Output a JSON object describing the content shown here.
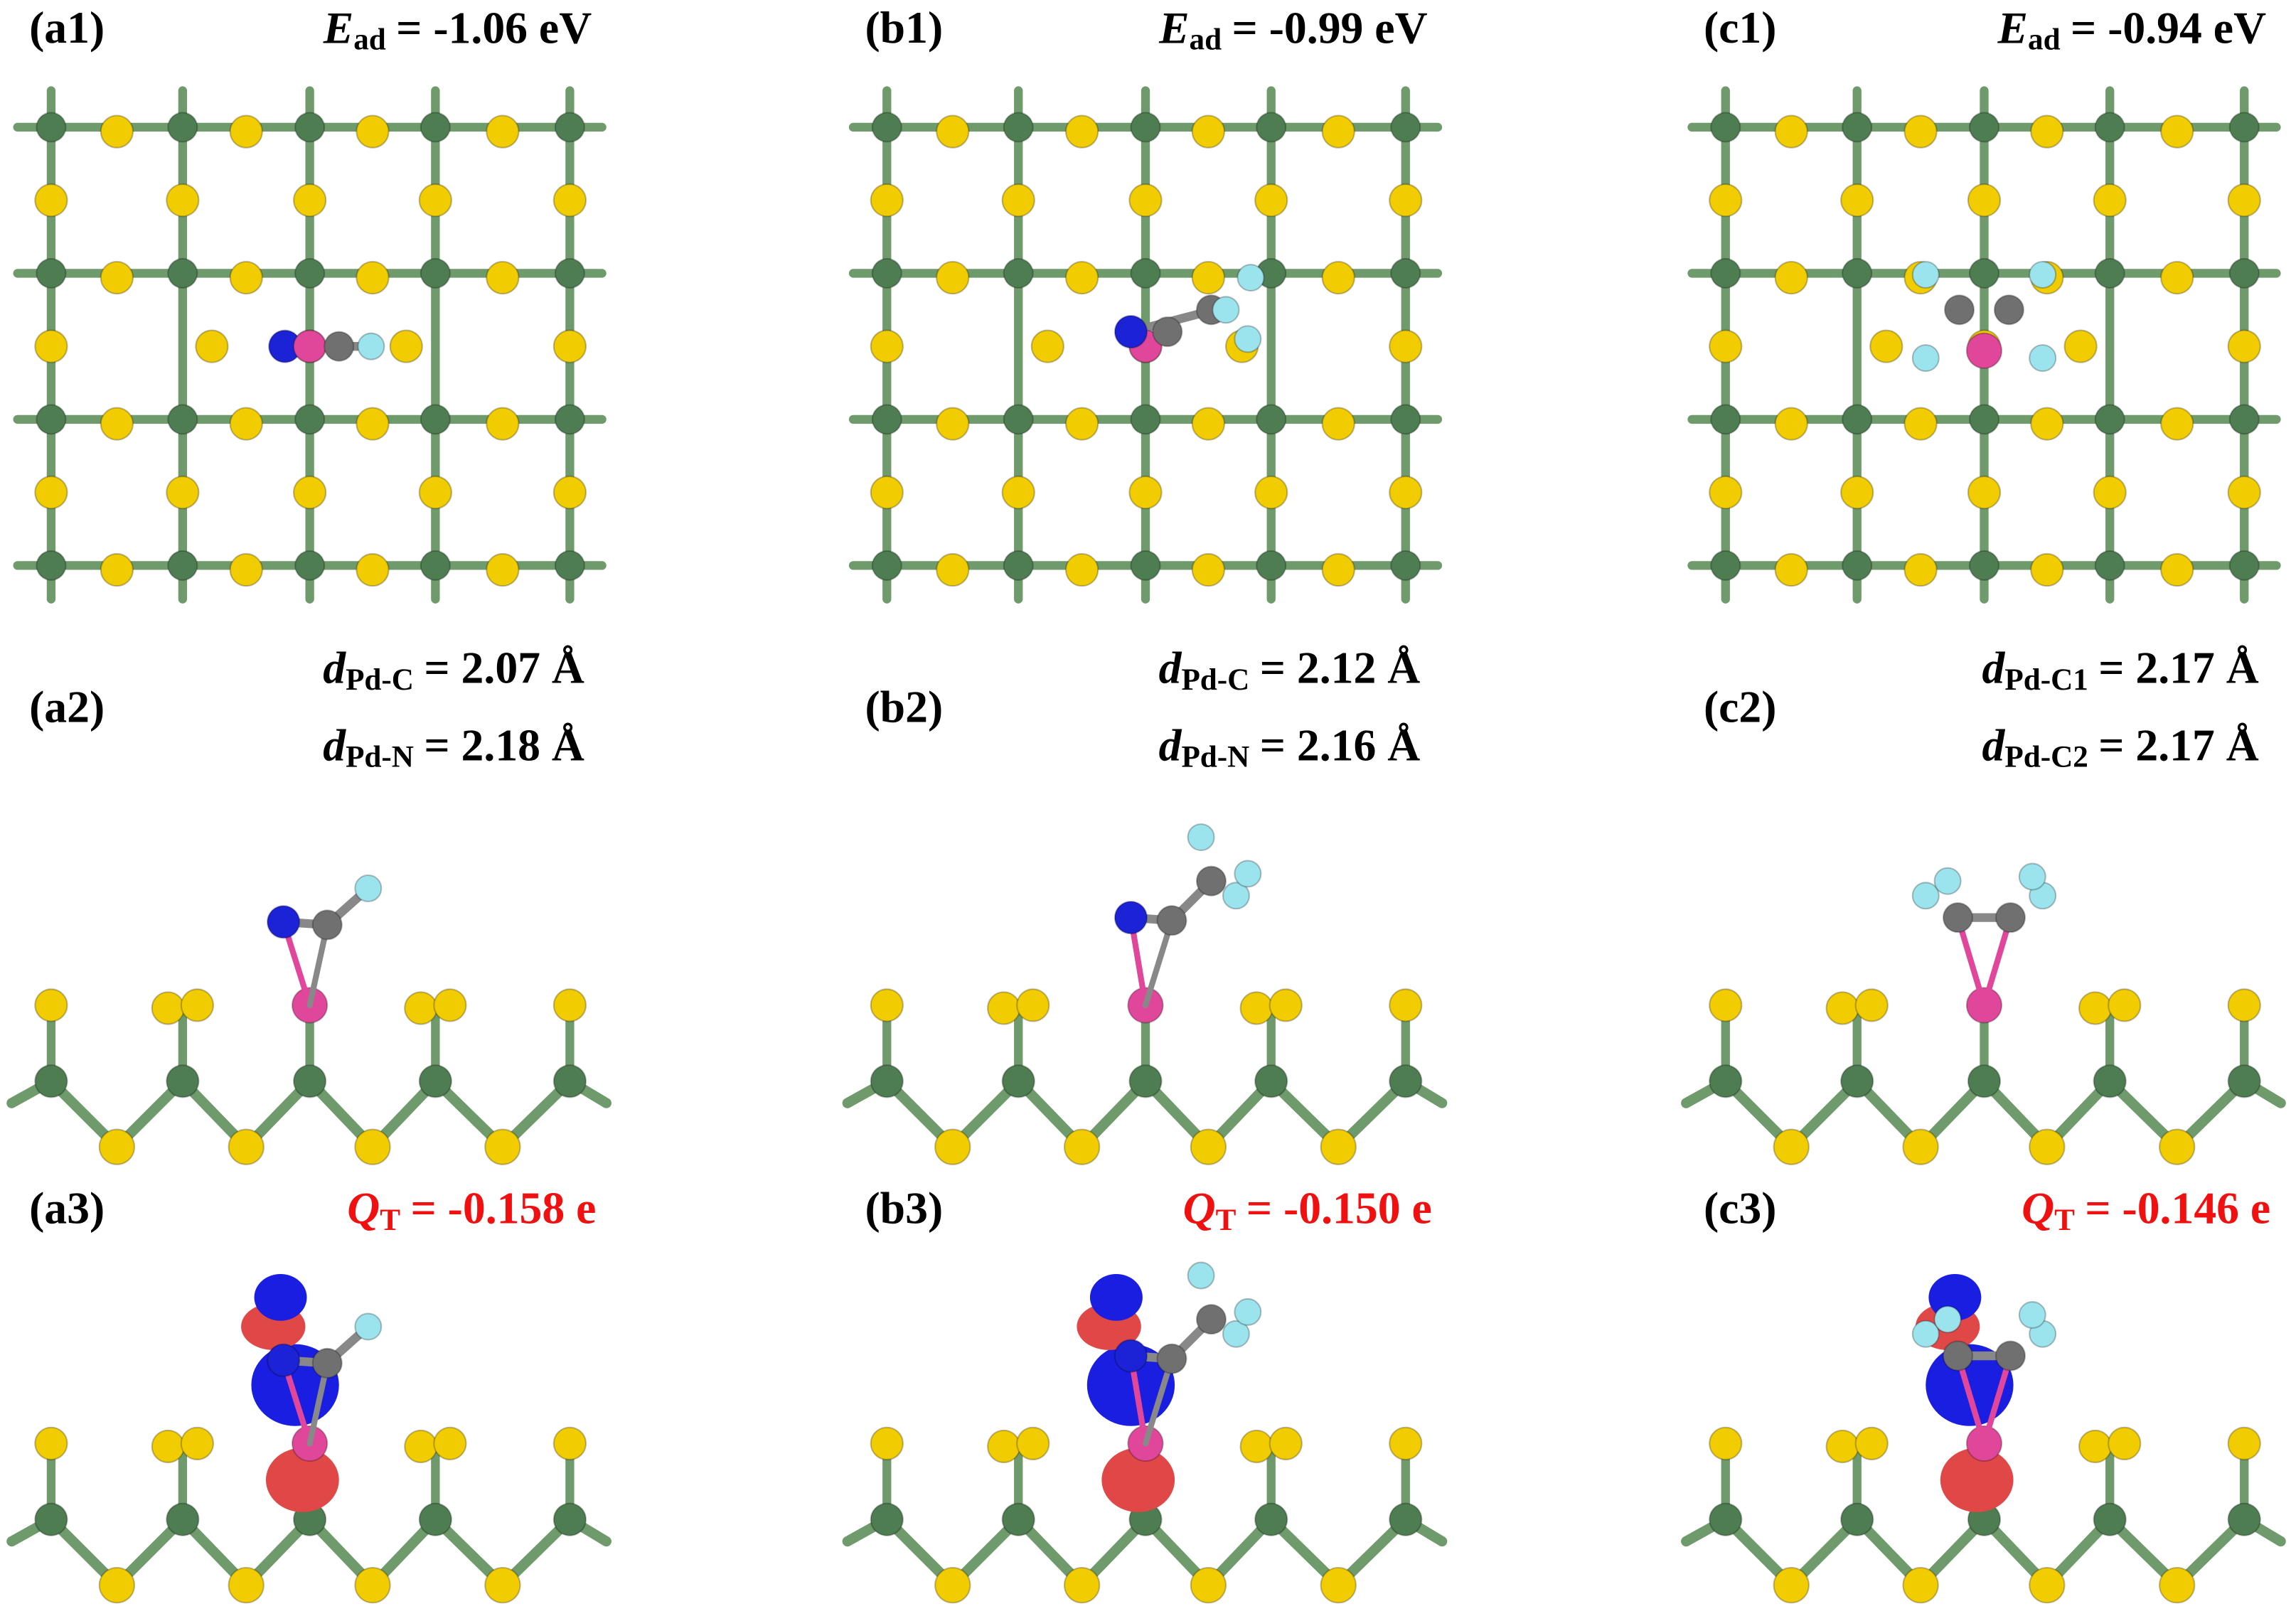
{
  "panels": [
    {
      "labels": [
        "(a1)",
        "(a2)",
        "(a3)"
      ],
      "energy": {
        "symbol": "E",
        "subscript": "ad",
        "text": "= -1.06 eV"
      },
      "distances": [
        {
          "symbol": "d",
          "subscript": "Pd-C",
          "text": "= 2.07 Å"
        },
        {
          "symbol": "d",
          "subscript": "Pd-N",
          "text": "= 2.18 Å"
        }
      ],
      "charge": {
        "symbol": "Q",
        "subscript": "T",
        "text": "= -0.158 e"
      }
    },
    {
      "labels": [
        "(b1)",
        "(b2)",
        "(b3)"
      ],
      "energy": {
        "symbol": "E",
        "subscript": "ad",
        "text": "= -0.99 eV"
      },
      "distances": [
        {
          "symbol": "d",
          "subscript": "Pd-C",
          "text": "= 2.12 Å"
        },
        {
          "symbol": "d",
          "subscript": "Pd-N",
          "text": "= 2.16 Å"
        }
      ],
      "charge": {
        "symbol": "Q",
        "subscript": "T",
        "text": "= -0.150 e"
      }
    },
    {
      "labels": [
        "(c1)",
        "(c2)",
        "(c3)"
      ],
      "energy": {
        "symbol": "E",
        "subscript": "ad",
        "text": "= -0.94 eV"
      },
      "distances": [
        {
          "symbol": "d",
          "subscript": "Pd-C1",
          "text": "= 2.17 Å"
        },
        {
          "symbol": "d",
          "subscript": "Pd-C2",
          "text": "= 2.17 Å"
        }
      ],
      "charge": {
        "symbol": "Q",
        "subscript": "T",
        "text": "= -0.146 e"
      }
    }
  ]
}
